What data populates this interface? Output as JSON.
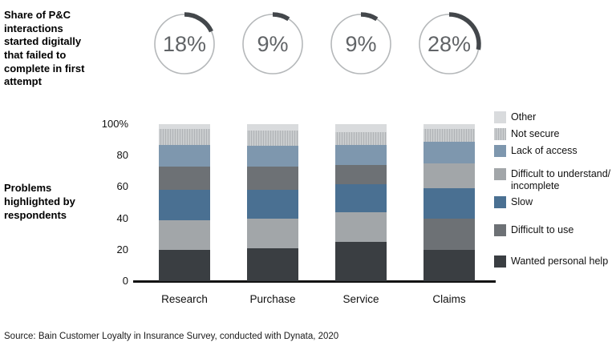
{
  "title_block": {
    "text": "Share of P&C interactions started digitally that failed to complete in first attempt"
  },
  "left_axis_label": "Problems highlighted by respondents",
  "source": "Source: Bain Customer Loyalty in Insurance Survey, conducted with Dynata, 2020",
  "colors": {
    "wanted_personal_help": "#3a3e42",
    "difficult_to_use": "#6d7175",
    "slow": "#4a7092",
    "difficult_to_understand": "#a2a6a9",
    "lack_of_access": "#7e97ae",
    "not_secure": "#c9ccce",
    "not_secure_stripe": "#b0b3b6",
    "other": "#d9dbdd",
    "gauge_ring": "#b5b8ba",
    "gauge_arc": "#43474b",
    "gauge_text": "#616467",
    "axis": "#121212"
  },
  "chart_data": {
    "type": "bar",
    "subtype": "stacked-100-percent",
    "title": "Share of P&C interactions started digitally that failed to complete in first attempt",
    "ylabel": "Problems highlighted by respondents",
    "ylim": [
      0,
      100
    ],
    "grid": false,
    "legend_position": "right",
    "categories": [
      "Research",
      "Purchase",
      "Service",
      "Claims"
    ],
    "gauges": {
      "unit": "%",
      "values": [
        18,
        9,
        9,
        28
      ]
    },
    "y_ticks": [
      {
        "v": 0,
        "label": "0"
      },
      {
        "v": 20,
        "label": "20"
      },
      {
        "v": 40,
        "label": "40"
      },
      {
        "v": 60,
        "label": "60"
      },
      {
        "v": 80,
        "label": "80"
      },
      {
        "v": 100,
        "label": "100%"
      }
    ],
    "series": [
      {
        "name": "Other",
        "key": "other",
        "values": [
          3,
          4,
          5,
          3
        ]
      },
      {
        "name": "Not secure",
        "key": "not_secure",
        "values": [
          10,
          10,
          8,
          8
        ]
      },
      {
        "name": "Lack of access",
        "key": "lack_of_access",
        "values": [
          14,
          13,
          13,
          14
        ]
      },
      {
        "name": "Difficult to understand/incomplete",
        "key": "difficult_to_understand",
        "values": [
          19,
          19,
          19,
          16
        ]
      },
      {
        "name": "Slow",
        "key": "slow",
        "values": [
          19,
          18,
          18,
          19
        ]
      },
      {
        "name": "Difficult to use",
        "key": "difficult_to_use",
        "values": [
          15,
          15,
          12,
          20
        ]
      },
      {
        "name": "Wanted personal help",
        "key": "wanted_personal_help",
        "values": [
          20,
          21,
          25,
          20
        ]
      }
    ],
    "bars": [
      {
        "category": "Research",
        "segments_bottom_to_top": [
          {
            "key": "wanted_personal_help",
            "label": "Wanted personal help",
            "value": 20
          },
          {
            "key": "difficult_to_understand",
            "label": "Difficult to understand/incomplete",
            "value": 19
          },
          {
            "key": "slow",
            "label": "Slow",
            "value": 19
          },
          {
            "key": "difficult_to_use",
            "label": "Difficult to use",
            "value": 15
          },
          {
            "key": "lack_of_access",
            "label": "Lack of access",
            "value": 14
          },
          {
            "key": "not_secure",
            "label": "Not secure",
            "value": 10
          },
          {
            "key": "other",
            "label": "Other",
            "value": 3
          }
        ]
      },
      {
        "category": "Purchase",
        "segments_bottom_to_top": [
          {
            "key": "wanted_personal_help",
            "label": "Wanted personal help",
            "value": 21
          },
          {
            "key": "difficult_to_understand",
            "label": "Difficult to understand/incomplete",
            "value": 19
          },
          {
            "key": "slow",
            "label": "Slow",
            "value": 18
          },
          {
            "key": "difficult_to_use",
            "label": "Difficult to use",
            "value": 15
          },
          {
            "key": "lack_of_access",
            "label": "Lack of access",
            "value": 13
          },
          {
            "key": "not_secure",
            "label": "Not secure",
            "value": 10
          },
          {
            "key": "other",
            "label": "Other",
            "value": 4
          }
        ]
      },
      {
        "category": "Service",
        "segments_bottom_to_top": [
          {
            "key": "wanted_personal_help",
            "label": "Wanted personal help",
            "value": 25
          },
          {
            "key": "difficult_to_understand",
            "label": "Difficult to understand/incomplete",
            "value": 19
          },
          {
            "key": "slow",
            "label": "Slow",
            "value": 18
          },
          {
            "key": "difficult_to_use",
            "label": "Difficult to use",
            "value": 12
          },
          {
            "key": "lack_of_access",
            "label": "Lack of access",
            "value": 13
          },
          {
            "key": "not_secure",
            "label": "Not secure",
            "value": 8
          },
          {
            "key": "other",
            "label": "Other",
            "value": 5
          }
        ]
      },
      {
        "category": "Claims",
        "segments_bottom_to_top": [
          {
            "key": "wanted_personal_help",
            "label": "Wanted personal help",
            "value": 20
          },
          {
            "key": "difficult_to_use",
            "label": "Difficult to use",
            "value": 20
          },
          {
            "key": "slow",
            "label": "Slow",
            "value": 19
          },
          {
            "key": "difficult_to_understand",
            "label": "Difficult to understand/incomplete",
            "value": 16
          },
          {
            "key": "lack_of_access",
            "label": "Lack of access",
            "value": 14
          },
          {
            "key": "not_secure",
            "label": "Not secure",
            "value": 8
          },
          {
            "key": "other",
            "label": "Other",
            "value": 3
          }
        ]
      }
    ],
    "legend": [
      {
        "label": "Other",
        "key": "other"
      },
      {
        "label": "Not secure",
        "key": "not_secure"
      },
      {
        "label": "Lack of access",
        "key": "lack_of_access"
      },
      {
        "label": "Difficult to understand/\nincomplete",
        "key": "difficult_to_understand"
      },
      {
        "label": "Slow",
        "key": "slow"
      },
      {
        "label": "Difficult to use",
        "key": "difficult_to_use"
      },
      {
        "label": "Wanted personal help",
        "key": "wanted_personal_help"
      }
    ]
  }
}
